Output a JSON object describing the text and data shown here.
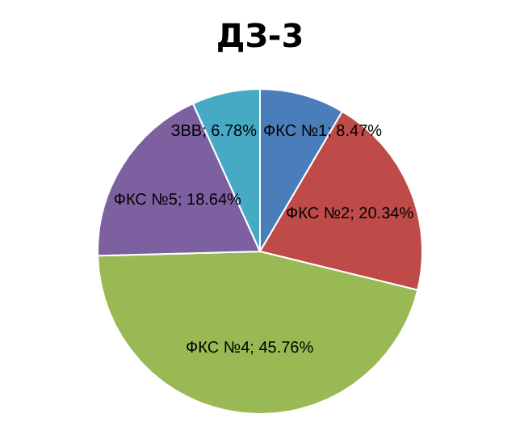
{
  "chart_data": {
    "type": "pie",
    "title": "ДЗ-3",
    "categories": [
      "ФКС №1",
      "ФКС №2",
      "ФКС №4",
      "ФКС №5",
      "ЗВВ"
    ],
    "values": [
      8.47,
      20.34,
      45.76,
      18.64,
      6.78
    ],
    "colors": [
      "#4a7ebb",
      "#be4b48",
      "#98b954",
      "#7d60a0",
      "#46aac5"
    ],
    "value_labels": [
      "; 8.47%",
      "; 20.34%",
      "; 45.76%",
      "; 18.64%",
      "; 6.78%"
    ],
    "legend": false
  }
}
